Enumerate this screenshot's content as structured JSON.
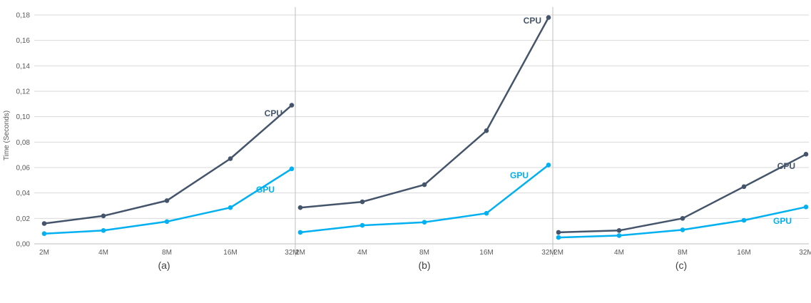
{
  "chart_data": {
    "type": "line",
    "ylabel": "Time (Seconds)",
    "ylim": [
      0,
      0.18
    ],
    "yticks": [
      "0,00",
      "0,02",
      "0,04",
      "0,06",
      "0,08",
      "0,10",
      "0,12",
      "0,14",
      "0,16",
      "0,18"
    ],
    "categories": [
      "2M",
      "4M",
      "8M",
      "16M",
      "32M"
    ],
    "grid": true,
    "colors": {
      "CPU": "#44546a",
      "GPU": "#00b0f0"
    },
    "panels": [
      {
        "label": "(a)",
        "series": [
          {
            "name": "CPU",
            "values": [
              0.016,
              0.022,
              0.034,
              0.067,
              0.109
            ]
          },
          {
            "name": "GPU",
            "values": [
              0.008,
              0.0105,
              0.0175,
              0.0285,
              0.059
            ]
          }
        ]
      },
      {
        "label": "(b)",
        "series": [
          {
            "name": "CPU",
            "values": [
              0.0285,
              0.033,
              0.0465,
              0.089,
              0.178
            ]
          },
          {
            "name": "GPU",
            "values": [
              0.009,
              0.0145,
              0.017,
              0.024,
              0.062
            ]
          }
        ]
      },
      {
        "label": "(c)",
        "series": [
          {
            "name": "CPU",
            "values": [
              0.009,
              0.0105,
              0.02,
              0.045,
              0.0705
            ]
          },
          {
            "name": "GPU",
            "values": [
              0.005,
              0.0065,
              0.011,
              0.0185,
              0.029
            ]
          }
        ]
      }
    ]
  }
}
